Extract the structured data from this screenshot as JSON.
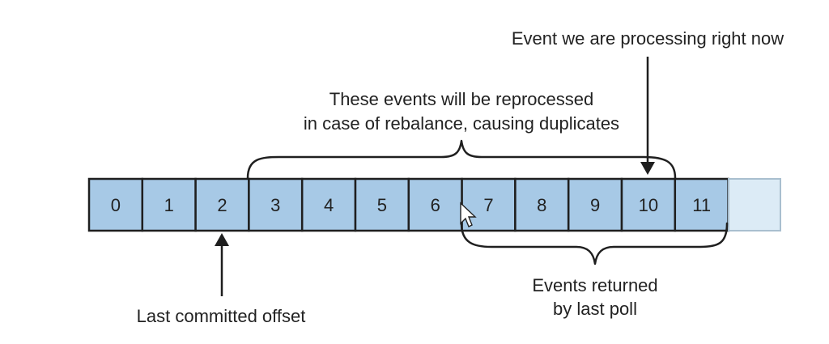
{
  "offsets": [
    "0",
    "1",
    "2",
    "3",
    "4",
    "5",
    "6",
    "7",
    "8",
    "9",
    "10",
    "11"
  ],
  "callouts": {
    "current_event": "Event we are processing right now",
    "reprocessed_line1": "These events will be reprocessed",
    "reprocessed_line2": "in case of rebalance, causing duplicates",
    "last_poll_line1": "Events returned",
    "last_poll_line2": "by last poll",
    "last_committed": "Last committed offset"
  },
  "colors": {
    "cell_fill": "#a7c9e6",
    "empty_cell_fill": "#dcebf6",
    "stroke": "#1f1f1f"
  },
  "icons": {
    "pointer": "mouse-pointer-icon"
  }
}
